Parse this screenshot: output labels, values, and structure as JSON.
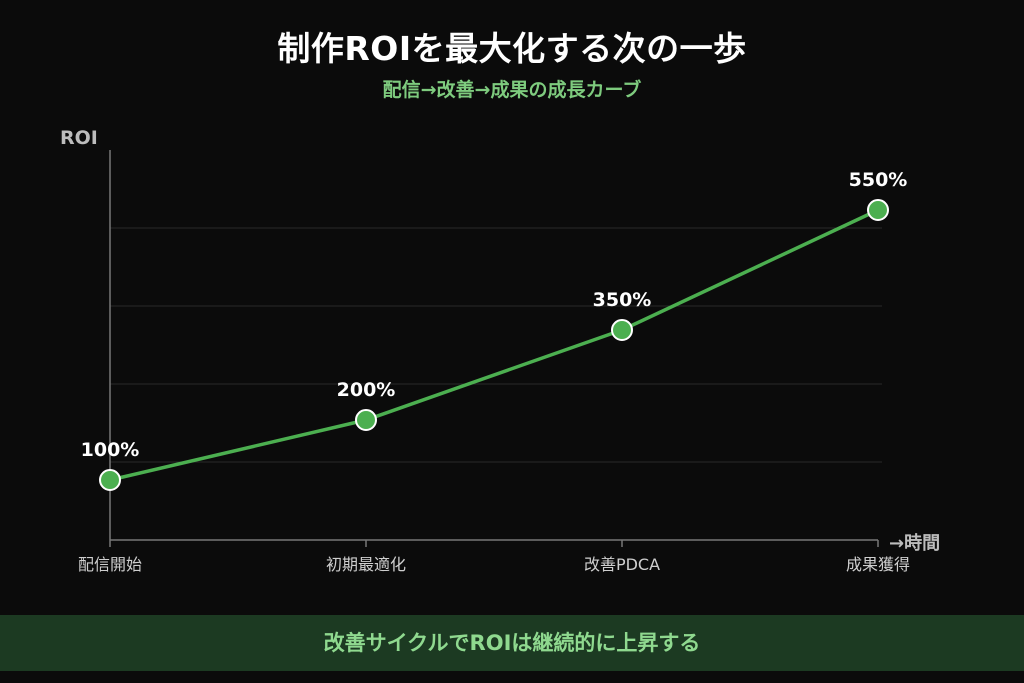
{
  "header": {
    "title": "制作ROIを最大化する次の一歩",
    "subtitle": "配信→改善→成果の成長カーブ"
  },
  "chart_data": {
    "type": "line",
    "categories": [
      "配信開始",
      "初期最適化",
      "改善PDCA",
      "成果獲得"
    ],
    "values": [
      100,
      200,
      350,
      550
    ],
    "data_labels": [
      "100%",
      "200%",
      "350%",
      "550%"
    ],
    "ylabel": "ROI",
    "xlabel": "→時間",
    "ylim": [
      0,
      650
    ],
    "grid": true,
    "colors": {
      "line": "#4caf50",
      "point": "#4caf50",
      "point_stroke": "#ffffff",
      "grid": "#2a2a2a",
      "axis": "#777777"
    }
  },
  "footer": {
    "text": "改善サイクルでROIは継続的に上昇する"
  }
}
